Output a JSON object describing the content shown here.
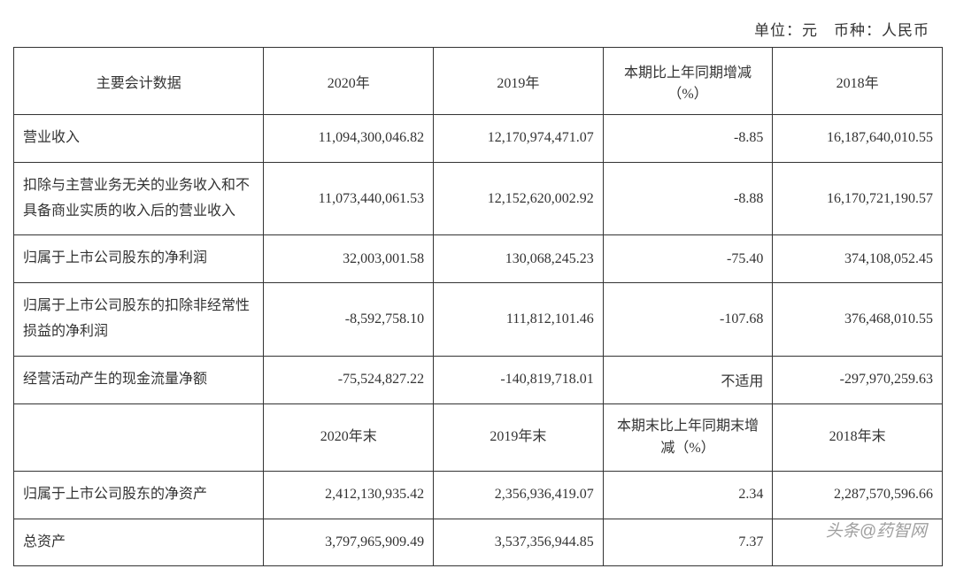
{
  "unit_label": "单位：元　币种：人民币",
  "table": {
    "header": {
      "c1": "主要会计数据",
      "c2": "2020年",
      "c3": "2019年",
      "c4": "本期比上年同期增减（%）",
      "c5": "2018年"
    },
    "rows": [
      {
        "label": "营业收入",
        "v2020": "11,094,300,046.82",
        "v2019": "12,170,974,471.07",
        "change": "-8.85",
        "v2018": "16,187,640,010.55"
      },
      {
        "label": "扣除与主营业务无关的业务收入和不具备商业实质的收入后的营业收入",
        "v2020": "11,073,440,061.53",
        "v2019": "12,152,620,002.92",
        "change": "-8.88",
        "v2018": "16,170,721,190.57"
      },
      {
        "label": "归属于上市公司股东的净利润",
        "v2020": "32,003,001.58",
        "v2019": "130,068,245.23",
        "change": "-75.40",
        "v2018": "374,108,052.45"
      },
      {
        "label": "归属于上市公司股东的扣除非经常性损益的净利润",
        "v2020": "-8,592,758.10",
        "v2019": "111,812,101.46",
        "change": "-107.68",
        "v2018": "376,468,010.55"
      },
      {
        "label": "经营活动产生的现金流量净额",
        "v2020": "-75,524,827.22",
        "v2019": "-140,819,718.01",
        "change": "不适用",
        "v2018": "-297,970,259.63"
      }
    ],
    "header2": {
      "c2": "2020年末",
      "c3": "2019年末",
      "c4": "本期末比上年同期末增减（%）",
      "c5": "2018年末"
    },
    "rows2": [
      {
        "label": "归属于上市公司股东的净资产",
        "v2020": "2,412,130,935.42",
        "v2019": "2,356,936,419.07",
        "change": "2.34",
        "v2018": "2,287,570,596.66"
      },
      {
        "label": "总资产",
        "v2020": "3,797,965,909.49",
        "v2019": "3,537,356,944.85",
        "change": "7.37",
        "v2018": ""
      }
    ]
  },
  "watermark_text": "头条@药智网",
  "styles": {
    "border_color": "#333333",
    "text_color": "#333333",
    "font_size_cell": 16,
    "font_size_unit": 17,
    "background_color": "#ffffff"
  }
}
